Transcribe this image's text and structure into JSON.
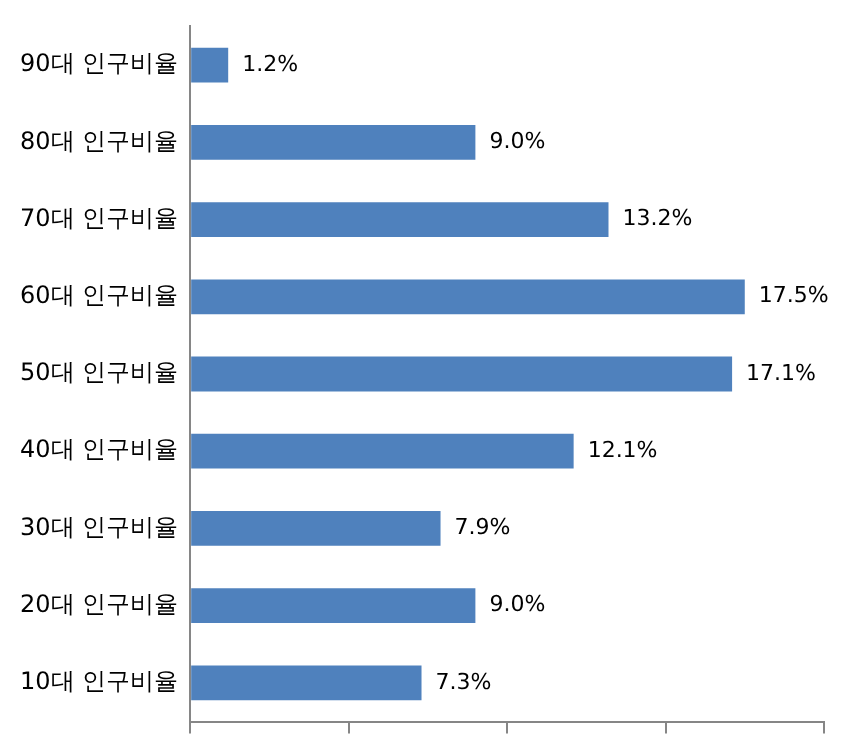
{
  "chart_data": {
    "type": "bar",
    "orientation": "horizontal",
    "categories": [
      "90대 인구비율",
      "80대 인구비율",
      "70대 인구비율",
      "60대 인구비율",
      "50대 인구비율",
      "40대 인구비율",
      "30대 인구비율",
      "20대 인구비율",
      "10대 인구비율"
    ],
    "values": [
      1.2,
      9.0,
      13.2,
      17.5,
      17.1,
      12.1,
      7.9,
      9.0,
      7.3
    ],
    "value_labels": [
      "1.2%",
      "9.0%",
      "13.2%",
      "17.5%",
      "17.1%",
      "12.1%",
      "7.9%",
      "9.0%",
      "7.3%"
    ],
    "color": "#4f81bd",
    "xlim": [
      0,
      20
    ],
    "xticks": [
      {
        "value": 0,
        "label": null
      },
      {
        "value": 5,
        "label": null
      },
      {
        "value": 10,
        "label": null
      },
      {
        "value": 15,
        "label": null
      },
      {
        "value": 20,
        "label": null
      }
    ],
    "grid": false,
    "legend": false,
    "tick_labels": "y"
  }
}
